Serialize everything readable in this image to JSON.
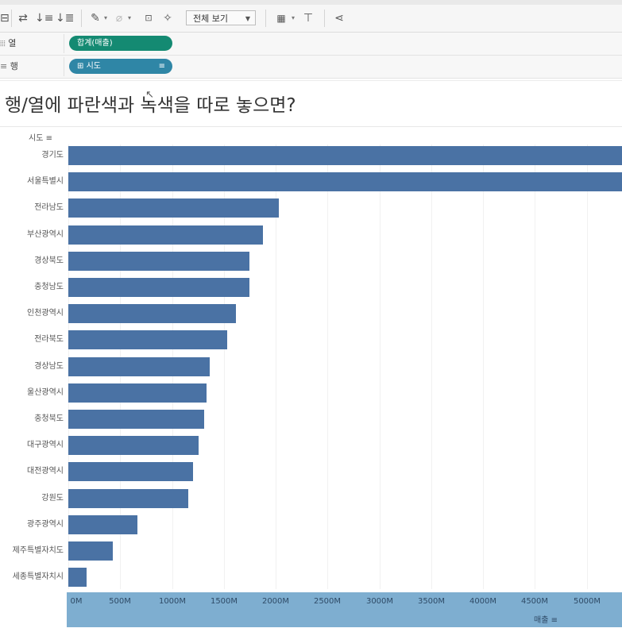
{
  "toolbar": {
    "view_select": "전체 보기",
    "icons": [
      "swap-icon",
      "sort-ascending-icon",
      "sort-descending-icon",
      "highlighter-icon",
      "clip-icon",
      "text-label-icon",
      "pin-icon",
      "show-me-icon",
      "presentation-icon",
      "share-icon"
    ]
  },
  "shelves": {
    "columns": {
      "label": "열",
      "pill": "합계(매출)"
    },
    "rows": {
      "label": "행",
      "pill": "시도"
    }
  },
  "title": "행/열에 파란색과 녹색을 따로 놓으면?",
  "chart": {
    "y_header": "시도",
    "x_title": "매출",
    "bar_color": "#4a72a4"
  },
  "chart_data": {
    "type": "bar",
    "orientation": "horizontal",
    "categories": [
      "경기도",
      "서울특별시",
      "전라남도",
      "부산광역시",
      "경상북도",
      "충청남도",
      "인천광역시",
      "전라북도",
      "경상남도",
      "울산광역시",
      "충청북도",
      "대구광역시",
      "대전광역시",
      "강원도",
      "광주광역시",
      "제주특별자치도",
      "세종특별자치시"
    ],
    "values": [
      5400,
      5400,
      2030,
      1880,
      1750,
      1750,
      1620,
      1530,
      1360,
      1330,
      1310,
      1260,
      1200,
      1160,
      670,
      430,
      180
    ],
    "xlabel": "매출",
    "ylabel": "시도",
    "x_ticks": [
      "0M",
      "500M",
      "1000M",
      "1500M",
      "2000M",
      "2500M",
      "3000M",
      "3500M",
      "4000M",
      "4500M",
      "5000M"
    ],
    "x_tick_values": [
      0,
      500,
      1000,
      1500,
      2000,
      2500,
      3000,
      3500,
      4000,
      4500,
      5000
    ],
    "xlim": [
      0,
      5340
    ],
    "unit": "M",
    "grid": true
  }
}
